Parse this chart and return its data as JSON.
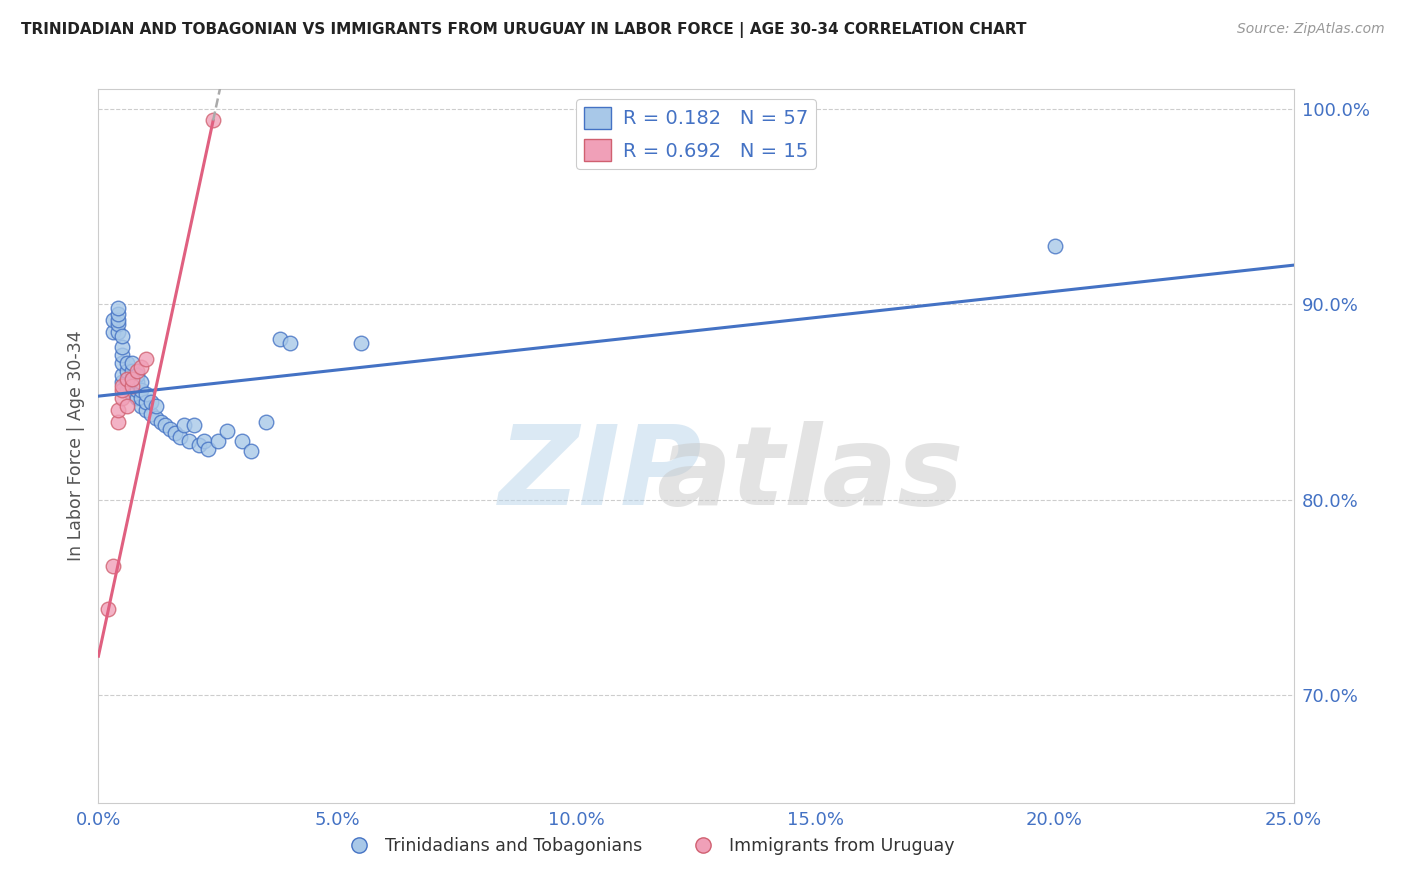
{
  "title": "TRINIDADIAN AND TOBAGONIAN VS IMMIGRANTS FROM URUGUAY IN LABOR FORCE | AGE 30-34 CORRELATION CHART",
  "source": "Source: ZipAtlas.com",
  "ylabel": "In Labor Force | Age 30-34",
  "legend_blue_r": "R = 0.182",
  "legend_blue_n": "N = 57",
  "legend_pink_r": "R = 0.692",
  "legend_pink_n": "N = 15",
  "legend_blue_label": "Trinidadians and Tobagonians",
  "legend_pink_label": "Immigrants from Uruguay",
  "blue_color": "#a8c8e8",
  "pink_color": "#f0a0b8",
  "blue_line_color": "#4472c4",
  "pink_line_color": "#e06080",
  "blue_scatter_x": [
    0.003,
    0.003,
    0.004,
    0.004,
    0.004,
    0.004,
    0.004,
    0.005,
    0.005,
    0.005,
    0.005,
    0.005,
    0.005,
    0.006,
    0.006,
    0.006,
    0.006,
    0.007,
    0.007,
    0.007,
    0.007,
    0.007,
    0.008,
    0.008,
    0.008,
    0.008,
    0.009,
    0.009,
    0.009,
    0.009,
    0.01,
    0.01,
    0.01,
    0.011,
    0.011,
    0.012,
    0.012,
    0.013,
    0.014,
    0.015,
    0.016,
    0.017,
    0.018,
    0.019,
    0.02,
    0.021,
    0.022,
    0.023,
    0.025,
    0.027,
    0.03,
    0.032,
    0.035,
    0.038,
    0.04,
    0.055,
    0.2
  ],
  "blue_scatter_y": [
    0.886,
    0.892,
    0.886,
    0.89,
    0.892,
    0.895,
    0.898,
    0.86,
    0.864,
    0.87,
    0.874,
    0.878,
    0.884,
    0.856,
    0.86,
    0.866,
    0.87,
    0.854,
    0.858,
    0.862,
    0.866,
    0.87,
    0.852,
    0.856,
    0.86,
    0.864,
    0.848,
    0.852,
    0.856,
    0.86,
    0.846,
    0.85,
    0.854,
    0.844,
    0.85,
    0.842,
    0.848,
    0.84,
    0.838,
    0.836,
    0.834,
    0.832,
    0.838,
    0.83,
    0.838,
    0.828,
    0.83,
    0.826,
    0.83,
    0.835,
    0.83,
    0.825,
    0.84,
    0.882,
    0.88,
    0.88,
    0.93
  ],
  "pink_scatter_x": [
    0.002,
    0.003,
    0.004,
    0.004,
    0.005,
    0.005,
    0.005,
    0.006,
    0.006,
    0.007,
    0.007,
    0.008,
    0.009,
    0.01,
    0.024
  ],
  "pink_scatter_y": [
    0.744,
    0.766,
    0.84,
    0.846,
    0.852,
    0.856,
    0.858,
    0.848,
    0.862,
    0.858,
    0.862,
    0.866,
    0.868,
    0.872,
    0.994
  ],
  "xlim": [
    0.0,
    0.25
  ],
  "ylim": [
    0.645,
    1.01
  ],
  "yticks": [
    0.7,
    0.8,
    0.9,
    1.0
  ],
  "ytick_labels": [
    "70.0%",
    "80.0%",
    "90.0%",
    "100.0%"
  ],
  "xticks": [
    0.0,
    0.05,
    0.1,
    0.15,
    0.2,
    0.25
  ],
  "xtick_labels": [
    "0.0%",
    "5.0%",
    "10.0%",
    "15.0%",
    "20.0%",
    "25.0%"
  ],
  "background_color": "#ffffff",
  "grid_color": "#c8c8c8"
}
